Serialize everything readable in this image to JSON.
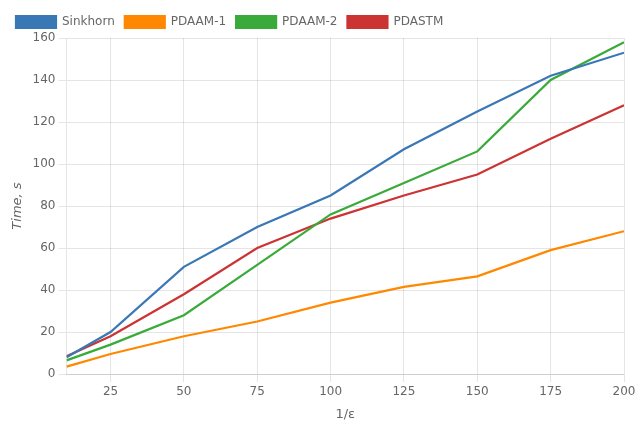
{
  "chart_data": {
    "type": "line",
    "xlabel": "1/ε",
    "ylabel": "Time, s",
    "x": [
      10,
      25,
      50,
      75,
      100,
      125,
      150,
      175,
      200
    ],
    "series": [
      {
        "name": "Sinkhorn",
        "color": "#3a78b5",
        "values": [
          8.0,
          20.0,
          51.0,
          70.0,
          85.0,
          107.0,
          125.0,
          142.0,
          153.0
        ]
      },
      {
        "name": "PDAAM-1",
        "color": "#ff8800",
        "values": [
          3.5,
          9.5,
          18.0,
          25.0,
          34.0,
          41.5,
          46.5,
          59.0,
          68.0
        ]
      },
      {
        "name": "PDAAM-2",
        "color": "#3aaa3a",
        "values": [
          6.5,
          14.0,
          28.0,
          52.0,
          76.0,
          91.0,
          106.0,
          140.0,
          158.0
        ]
      },
      {
        "name": "PDASTM",
        "color": "#cc3333",
        "values": [
          8.5,
          18.0,
          38.0,
          60.0,
          74.0,
          85.0,
          95.0,
          112.0,
          128.0
        ]
      }
    ],
    "xlim": [
      10,
      200
    ],
    "ylim": [
      0,
      160
    ],
    "xticks": [
      25,
      50,
      75,
      100,
      125,
      150,
      175,
      200
    ],
    "yticks": [
      0,
      20,
      40,
      60,
      80,
      100,
      120,
      140,
      160
    ],
    "grid": true,
    "legend": "upper left"
  }
}
